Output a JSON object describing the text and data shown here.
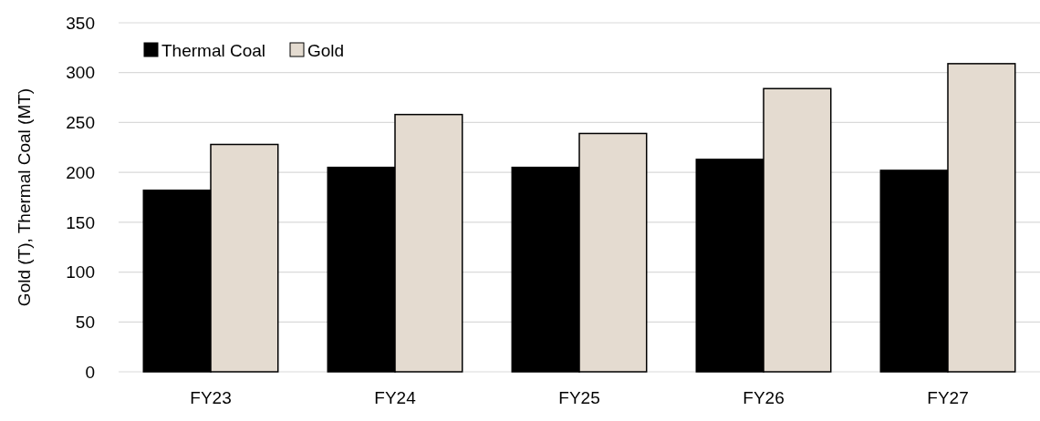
{
  "chart_data": {
    "type": "bar",
    "ylabel": "Gold (T), Thermal Coal (MT)",
    "categories": [
      "FY23",
      "FY24",
      "FY25",
      "FY26",
      "FY27"
    ],
    "series": [
      {
        "name": "Thermal Coal",
        "color": "#000000",
        "values": [
          182,
          205,
          205,
          213,
          202
        ]
      },
      {
        "name": "Gold",
        "color": "#e4dbd0",
        "values": [
          228,
          258,
          239,
          284,
          309
        ]
      }
    ],
    "ylim": [
      0,
      350
    ],
    "yticks": [
      0,
      50,
      100,
      150,
      200,
      250,
      300,
      350
    ],
    "grid": "y",
    "legend": "top left"
  }
}
